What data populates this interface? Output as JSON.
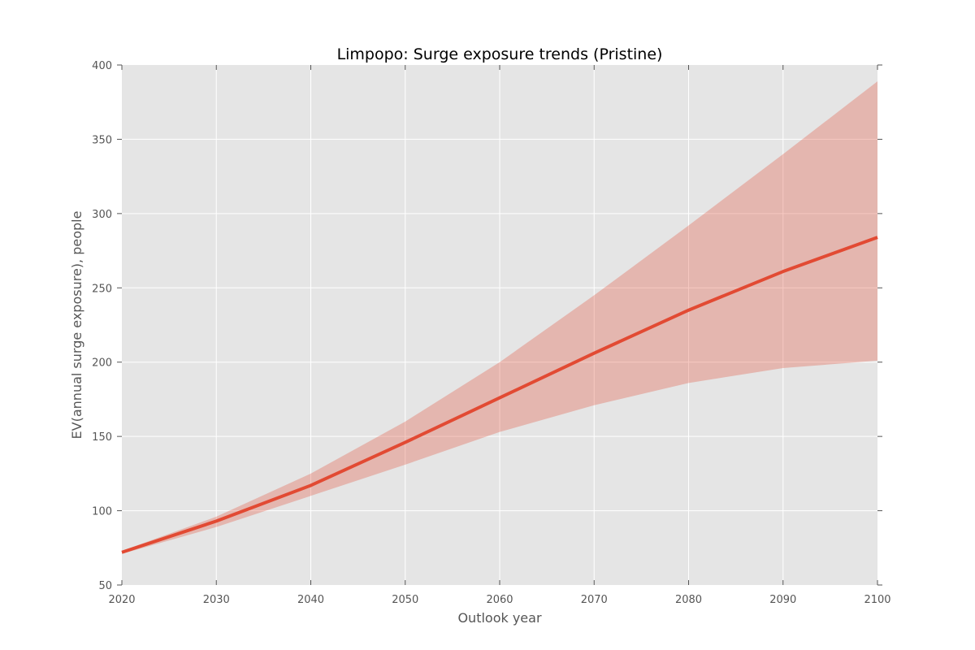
{
  "chart_data": {
    "type": "line",
    "title": "Limpopo: Surge exposure trends (Pristine)",
    "xlabel": "Outlook year",
    "ylabel": "EV(annual surge exposure), people",
    "xlim": [
      2020,
      2100
    ],
    "ylim": [
      50,
      400
    ],
    "xticks": [
      2020,
      2030,
      2040,
      2050,
      2060,
      2070,
      2080,
      2090,
      2100
    ],
    "yticks": [
      50,
      100,
      150,
      200,
      250,
      300,
      350,
      400
    ],
    "grid": true,
    "x": [
      2020,
      2030,
      2040,
      2050,
      2060,
      2070,
      2080,
      2090,
      2100
    ],
    "series": [
      {
        "values": [
          72,
          93,
          117,
          146,
          176,
          206,
          235,
          261,
          284
        ],
        "lower": [
          71,
          89,
          110,
          131,
          153,
          171,
          186,
          196,
          201
        ],
        "upper": [
          73,
          96,
          125,
          160,
          200,
          245,
          292,
          340,
          389
        ],
        "color": "#E24A33",
        "band_color": "#E24A33"
      }
    ],
    "background_color": "#E5E5E5"
  }
}
